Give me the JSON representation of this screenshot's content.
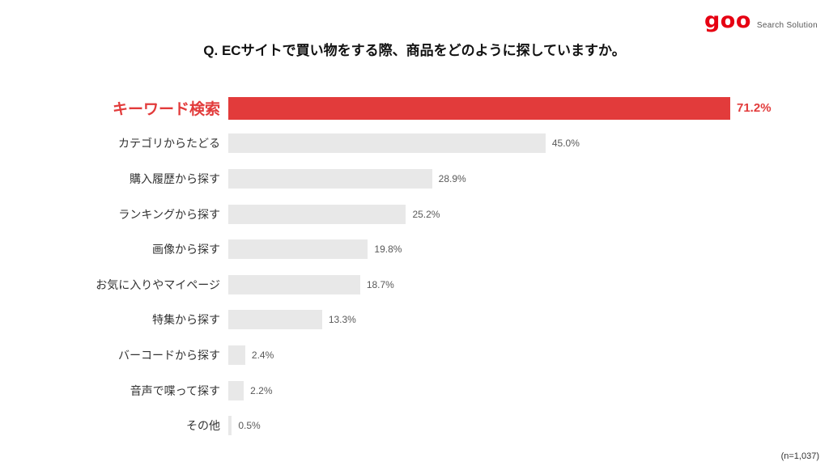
{
  "logo": {
    "brand": "goo",
    "subtext": "Search Solution"
  },
  "title": "Q. ECサイトで買い物をする際、商品をどのように探していますか。",
  "note": "(n=1,037)",
  "colors": {
    "highlight": "#e23b3b",
    "bar_default": "#e8e8e8",
    "value_text": "#595959",
    "brand_red": "#e60012"
  },
  "chart_data": {
    "type": "bar",
    "orientation": "horizontal",
    "title": "Q. ECサイトで買い物をする際、商品をどのように探していますか。",
    "xlabel": "",
    "ylabel": "",
    "xlim": [
      0,
      80
    ],
    "grid": false,
    "legend": "none",
    "sample_note": "(n=1,037)",
    "highlight_index": 0,
    "categories": [
      "キーワード検索",
      "カテゴリからたどる",
      "購入履歴から探す",
      "ランキングから探す",
      "画像から探す",
      "お気に入りやマイページ",
      "特集から探す",
      "バーコードから探す",
      "音声で喋って探す",
      "その他"
    ],
    "values": [
      71.2,
      45.0,
      28.9,
      25.2,
      19.8,
      18.7,
      13.3,
      2.4,
      2.2,
      0.5
    ],
    "value_labels": [
      "71.2%",
      "45.0%",
      "28.9%",
      "25.2%",
      "19.8%",
      "18.7%",
      "13.3%",
      "2.4%",
      "2.2%",
      "0.5%"
    ]
  }
}
